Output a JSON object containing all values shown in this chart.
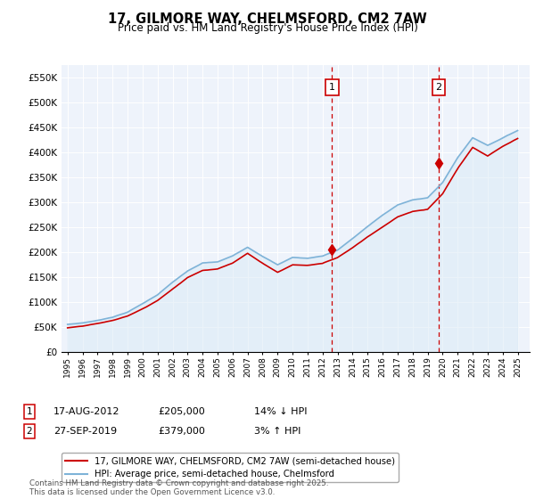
{
  "title": "17, GILMORE WAY, CHELMSFORD, CM2 7AW",
  "subtitle": "Price paid vs. HM Land Registry's House Price Index (HPI)",
  "ylim": [
    0,
    575000
  ],
  "yticks": [
    0,
    50000,
    100000,
    150000,
    200000,
    250000,
    300000,
    350000,
    400000,
    450000,
    500000,
    550000
  ],
  "ytick_labels": [
    "£0",
    "£50K",
    "£100K",
    "£150K",
    "£200K",
    "£250K",
    "£300K",
    "£350K",
    "£400K",
    "£450K",
    "£500K",
    "£550K"
  ],
  "hpi_color": "#7eb3d8",
  "hpi_fill_color": "#daeaf6",
  "red_color": "#cc0000",
  "vline_color": "#cc0000",
  "plot_bg_color": "#eef3fb",
  "legend1_label": "17, GILMORE WAY, CHELMSFORD, CM2 7AW (semi-detached house)",
  "legend2_label": "HPI: Average price, semi-detached house, Chelmsford",
  "sale1_year_f": 2012.63,
  "sale1_price": 205000,
  "sale2_year_f": 2019.74,
  "sale2_price": 379000,
  "footer": "Contains HM Land Registry data © Crown copyright and database right 2025.\nThis data is licensed under the Open Government Licence v3.0."
}
